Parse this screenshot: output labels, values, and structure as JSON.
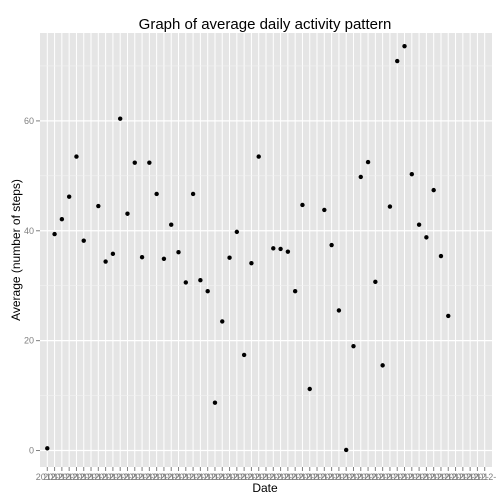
{
  "chart_data": {
    "type": "scatter",
    "title": "Graph of average daily activity pattern",
    "xlabel": "Date",
    "ylabel": "Average (number of steps)",
    "ylim": [
      -3,
      76
    ],
    "y_ticks": [
      0,
      20,
      40,
      60
    ],
    "grid": true,
    "x_ticks_label_prefix": "2012-",
    "n_dates": 61,
    "points": [
      {
        "i": 1,
        "y": 0.4
      },
      {
        "i": 2,
        "y": 39.4
      },
      {
        "i": 3,
        "y": 42.1
      },
      {
        "i": 4,
        "y": 46.2
      },
      {
        "i": 5,
        "y": 53.5
      },
      {
        "i": 6,
        "y": 38.2
      },
      {
        "i": 8,
        "y": 44.5
      },
      {
        "i": 9,
        "y": 34.4
      },
      {
        "i": 10,
        "y": 35.8
      },
      {
        "i": 11,
        "y": 60.4
      },
      {
        "i": 12,
        "y": 43.1
      },
      {
        "i": 13,
        "y": 52.4
      },
      {
        "i": 14,
        "y": 35.2
      },
      {
        "i": 15,
        "y": 52.4
      },
      {
        "i": 16,
        "y": 46.7
      },
      {
        "i": 17,
        "y": 34.9
      },
      {
        "i": 18,
        "y": 41.1
      },
      {
        "i": 19,
        "y": 36.1
      },
      {
        "i": 20,
        "y": 30.6
      },
      {
        "i": 21,
        "y": 46.7
      },
      {
        "i": 22,
        "y": 31.0
      },
      {
        "i": 23,
        "y": 29.0
      },
      {
        "i": 24,
        "y": 8.7
      },
      {
        "i": 25,
        "y": 23.5
      },
      {
        "i": 26,
        "y": 35.1
      },
      {
        "i": 27,
        "y": 39.8
      },
      {
        "i": 28,
        "y": 17.4
      },
      {
        "i": 29,
        "y": 34.1
      },
      {
        "i": 30,
        "y": 53.5
      },
      {
        "i": 32,
        "y": 36.8
      },
      {
        "i": 33,
        "y": 36.7
      },
      {
        "i": 34,
        "y": 36.2
      },
      {
        "i": 35,
        "y": 29.0
      },
      {
        "i": 36,
        "y": 44.7
      },
      {
        "i": 37,
        "y": 11.2
      },
      {
        "i": 39,
        "y": 43.8
      },
      {
        "i": 40,
        "y": 37.4
      },
      {
        "i": 41,
        "y": 25.5
      },
      {
        "i": 42,
        "y": 0.1
      },
      {
        "i": 43,
        "y": 19.0
      },
      {
        "i": 44,
        "y": 49.8
      },
      {
        "i": 45,
        "y": 52.5
      },
      {
        "i": 46,
        "y": 30.7
      },
      {
        "i": 47,
        "y": 15.5
      },
      {
        "i": 48,
        "y": 44.4
      },
      {
        "i": 49,
        "y": 70.9
      },
      {
        "i": 50,
        "y": 73.6
      },
      {
        "i": 51,
        "y": 50.3
      },
      {
        "i": 52,
        "y": 41.1
      },
      {
        "i": 53,
        "y": 38.8
      },
      {
        "i": 54,
        "y": 47.4
      },
      {
        "i": 55,
        "y": 35.4
      },
      {
        "i": 56,
        "y": 24.5
      }
    ]
  }
}
